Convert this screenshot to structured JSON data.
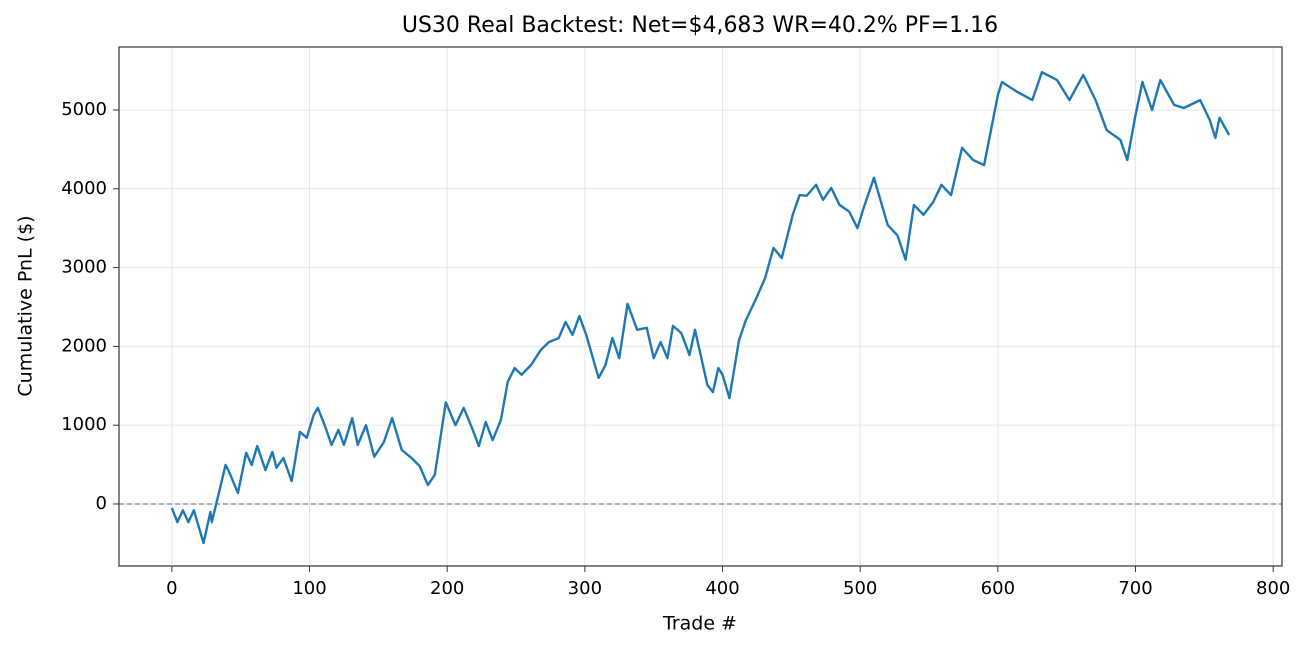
{
  "chart_data": {
    "type": "line",
    "title": "US30 Real Backtest: Net=$4,683 WR=40.2% PF=1.16",
    "x_label": "Trade #",
    "y_label": "Cumulative PnL ($)",
    "x": [
      0,
      4,
      8,
      12,
      16,
      23,
      28,
      29,
      35,
      39,
      41,
      48,
      54,
      58,
      62,
      68,
      73,
      76,
      81,
      87,
      93,
      98,
      103,
      106,
      111,
      116,
      121,
      125,
      131,
      135,
      141,
      147,
      154,
      160,
      167,
      174,
      180,
      186,
      191,
      199,
      206,
      212,
      218,
      223,
      228,
      233,
      239,
      244,
      249,
      254,
      261,
      268,
      274,
      281,
      286,
      291,
      296,
      301,
      310,
      315,
      320,
      325,
      331,
      338,
      345,
      350,
      355,
      360,
      364,
      370,
      376,
      380,
      389,
      393,
      397,
      400,
      405,
      412,
      417,
      424,
      431,
      437,
      443,
      451,
      456,
      461,
      468,
      473,
      479,
      485,
      492,
      498,
      502,
      510,
      520,
      527,
      533,
      539,
      546,
      553,
      559,
      566,
      574,
      582,
      590,
      600,
      603,
      614,
      625,
      632,
      643,
      652,
      662,
      671,
      679,
      689,
      694,
      700,
      705,
      712,
      718,
      728,
      735,
      747,
      754,
      758,
      761,
      768
    ],
    "series": [
      {
        "name": "Cumulative PnL",
        "color": "#1f77b4",
        "values": [
          -50,
          -230,
          -80,
          -230,
          -80,
          -495,
          -100,
          -230,
          200,
          495,
          430,
          140,
          650,
          495,
          735,
          430,
          660,
          460,
          585,
          290,
          915,
          840,
          1130,
          1220,
          1000,
          750,
          940,
          750,
          1090,
          750,
          1000,
          600,
          785,
          1090,
          685,
          585,
          480,
          240,
          370,
          1290,
          1000,
          1220,
          965,
          735,
          1040,
          810,
          1065,
          1550,
          1725,
          1640,
          1765,
          1955,
          2055,
          2105,
          2310,
          2145,
          2385,
          2145,
          1600,
          1765,
          2105,
          1850,
          2540,
          2210,
          2235,
          1850,
          2055,
          1850,
          2260,
          2170,
          1890,
          2210,
          1510,
          1420,
          1725,
          1640,
          1345,
          2080,
          2335,
          2590,
          2870,
          3250,
          3120,
          3670,
          3920,
          3910,
          4050,
          3860,
          4010,
          3795,
          3710,
          3500,
          3730,
          4140,
          3540,
          3410,
          3100,
          3795,
          3670,
          3830,
          4050,
          3920,
          4520,
          4365,
          4300,
          5190,
          5355,
          5230,
          5125,
          5480,
          5380,
          5125,
          5445,
          5125,
          4745,
          4620,
          4365,
          4935,
          5355,
          5000,
          5380,
          5065,
          5025,
          5125,
          4870,
          4645,
          4900,
          4683
        ]
      }
    ],
    "reference_line": 0,
    "xlim": [
      -38.4,
      806.4
    ],
    "xticks": [
      0,
      100,
      200,
      300,
      400,
      500,
      600,
      700,
      800
    ],
    "ylim": [
      -787,
      5799
    ],
    "yticks": [
      0,
      1000,
      2000,
      3000,
      4000,
      5000
    ],
    "grid": true
  }
}
